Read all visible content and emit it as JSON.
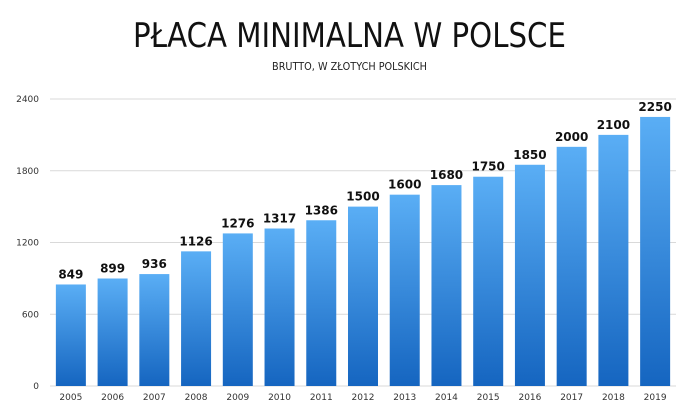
{
  "chart_data": {
    "type": "bar",
    "title": "PŁACA MINIMALNA W POLSCE",
    "subtitle": "BRUTTO, W ZŁOTYCH POLSKICH",
    "xlabel": "",
    "ylabel": "",
    "categories": [
      "2005",
      "2006",
      "2007",
      "2008",
      "2009",
      "2010",
      "2011",
      "2012",
      "2013",
      "2014",
      "2015",
      "2016",
      "2017",
      "2018",
      "2019"
    ],
    "values": [
      849,
      899,
      936,
      1126,
      1276,
      1317,
      1386,
      1500,
      1600,
      1680,
      1750,
      1850,
      2000,
      2100,
      2250
    ],
    "data_labels": [
      "849",
      "899",
      "936",
      "1126",
      "1276",
      "1317",
      "1386",
      "1500",
      "1600",
      "1680",
      "1750",
      "1850",
      "2000",
      "2100",
      "2250"
    ],
    "ylim": [
      0,
      2400
    ],
    "yticks": [
      0,
      600,
      1200,
      1800,
      2400
    ],
    "ytick_labels": [
      "0",
      "600",
      "1200",
      "1800",
      "2400"
    ],
    "grid": true,
    "legend": "none",
    "colors": {
      "bar_top": "#5aaef5",
      "bar_bottom": "#1565c0",
      "grid": "#d9d9d9"
    }
  }
}
